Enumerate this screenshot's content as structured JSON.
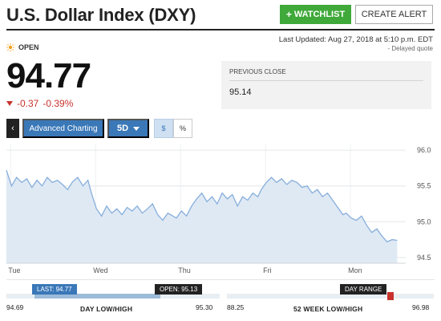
{
  "header": {
    "title": "U.S. Dollar Index (DXY)",
    "watchlist_label": "WATCHLIST",
    "watchlist_plus": "+",
    "alert_label": "CREATE ALERT"
  },
  "status": {
    "market_state": "OPEN",
    "last_updated": "Last Updated: Aug 27, 2018 at 5:10 p.m. EDT",
    "delayed": "- Delayed quote",
    "icon": "sun-icon"
  },
  "quote": {
    "price": "94.77",
    "change": "-0.37",
    "change_pct": "-0.39%",
    "direction": "down",
    "down_color": "#c8322d"
  },
  "previous_close": {
    "label": "PREVIOUS CLOSE",
    "value": "95.14"
  },
  "toolbar": {
    "back_icon": "chevron-left-icon",
    "advanced_label": "Advanced Charting",
    "range_label": "5D",
    "dollar_label": "$",
    "percent_label": "%"
  },
  "chart_data": {
    "type": "area",
    "ylim": [
      94.42,
      96.08
    ],
    "yticks": [
      "96.0",
      "95.5",
      "95.0",
      "94.5"
    ],
    "ytick_values": [
      96.0,
      95.5,
      95.0,
      94.5
    ],
    "day_labels": [
      "Tue",
      "Wed",
      "Thu",
      "Fri",
      "Mon"
    ],
    "day_positions": [
      0.05,
      1.05,
      2.05,
      3.05,
      4.05
    ],
    "x": [
      0.0,
      0.06,
      0.12,
      0.18,
      0.24,
      0.3,
      0.36,
      0.42,
      0.48,
      0.54,
      0.6,
      0.66,
      0.72,
      0.78,
      0.84,
      0.9,
      0.96,
      1.0,
      1.06,
      1.12,
      1.18,
      1.24,
      1.3,
      1.36,
      1.42,
      1.48,
      1.54,
      1.6,
      1.66,
      1.72,
      1.78,
      1.84,
      1.9,
      1.96,
      2.0,
      2.06,
      2.12,
      2.18,
      2.24,
      2.3,
      2.36,
      2.42,
      2.48,
      2.54,
      2.6,
      2.66,
      2.72,
      2.78,
      2.84,
      2.9,
      2.96,
      3.0,
      3.06,
      3.12,
      3.18,
      3.24,
      3.3,
      3.36,
      3.42,
      3.48,
      3.54,
      3.6,
      3.66,
      3.72,
      3.78,
      3.84,
      3.9,
      3.96,
      4.0,
      4.06,
      4.12,
      4.18,
      4.24,
      4.3,
      4.36,
      4.42,
      4.48,
      4.54,
      4.6
    ],
    "y": [
      95.72,
      95.5,
      95.62,
      95.55,
      95.6,
      95.48,
      95.58,
      95.5,
      95.62,
      95.55,
      95.58,
      95.52,
      95.45,
      95.56,
      95.62,
      95.5,
      95.58,
      95.4,
      95.18,
      95.08,
      95.22,
      95.12,
      95.18,
      95.1,
      95.2,
      95.15,
      95.22,
      95.12,
      95.18,
      95.25,
      95.1,
      95.02,
      95.12,
      95.08,
      95.05,
      95.15,
      95.08,
      95.22,
      95.32,
      95.4,
      95.28,
      95.35,
      95.25,
      95.4,
      95.32,
      95.38,
      95.22,
      95.35,
      95.3,
      95.4,
      95.35,
      95.45,
      95.55,
      95.62,
      95.55,
      95.6,
      95.52,
      95.58,
      95.55,
      95.48,
      95.5,
      95.4,
      95.45,
      95.35,
      95.4,
      95.3,
      95.2,
      95.1,
      95.12,
      95.05,
      95.02,
      95.08,
      94.95,
      94.85,
      94.9,
      94.8,
      94.72,
      94.75,
      94.74
    ],
    "xmax": 4.7,
    "line_color": "#86aedb",
    "fill_color": "#dfe9f4"
  },
  "ranges": {
    "day": {
      "low": "94.69",
      "high": "95.30",
      "title": "DAY LOW/HIGH",
      "last_flag": "LAST: 94.77",
      "open_flag": "OPEN: 95.13",
      "low_value": 94.69,
      "high_value": 95.3,
      "last_value": 94.77,
      "open_value": 95.13
    },
    "week52": {
      "low": "88.25",
      "high": "96.98",
      "title": "52 WEEK LOW/HIGH",
      "flag": "DAY RANGE",
      "low_value": 88.25,
      "high_value": 96.98,
      "marker_color": "#c8322d"
    }
  }
}
